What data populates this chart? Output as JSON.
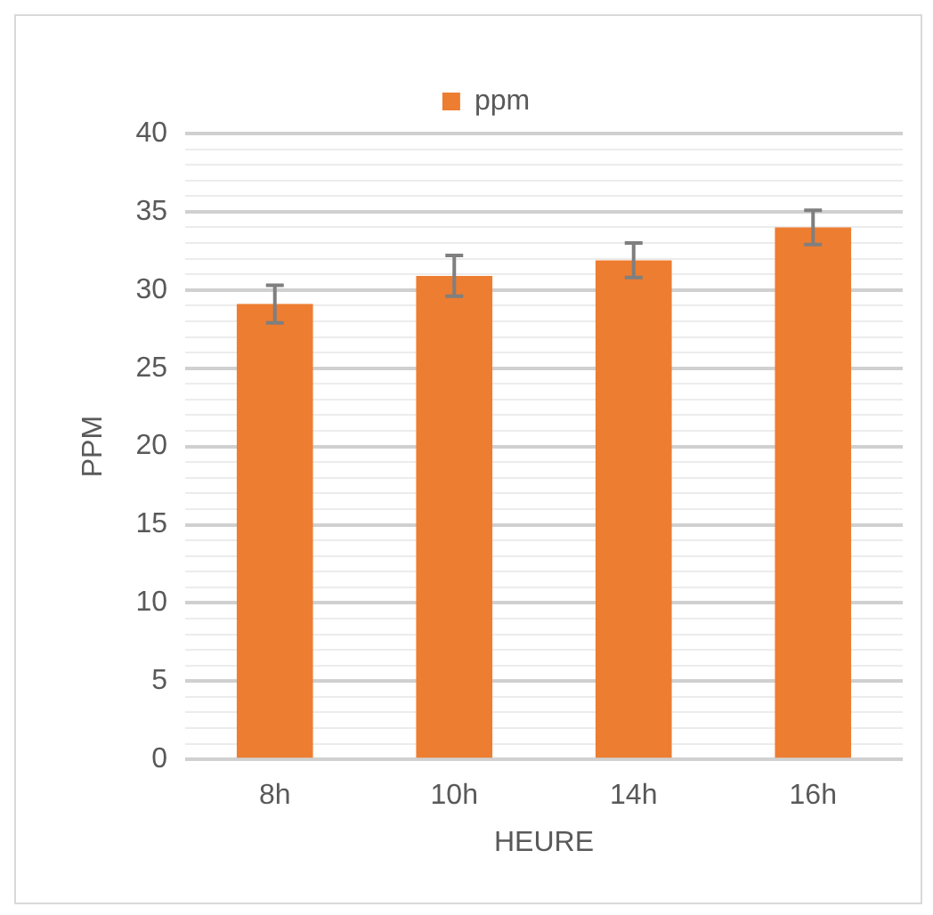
{
  "chart_data": {
    "type": "bar",
    "xlabel": "HEURE",
    "ylabel": "PPM",
    "categories": [
      "8h",
      "10h",
      "14h",
      "16h"
    ],
    "series": [
      {
        "name": "ppm",
        "color": "#ed7d31",
        "values": [
          29.1,
          30.9,
          31.9,
          34.0
        ],
        "errors": [
          1.2,
          1.3,
          1.1,
          1.1
        ]
      }
    ],
    "ylim": [
      0,
      40
    ],
    "yticks": [
      0,
      {
        "value": 1,
        "label": null
      },
      {
        "value": 2,
        "label": null
      },
      {
        "value": 3,
        "label": null
      },
      {
        "value": 4,
        "label": null
      },
      5,
      {
        "value": 6,
        "label": null
      },
      {
        "value": 7,
        "label": null
      },
      {
        "value": 8,
        "label": null
      },
      {
        "value": 9,
        "label": null
      },
      10,
      {
        "value": 11,
        "label": null
      },
      {
        "value": 12,
        "label": null
      },
      {
        "value": 13,
        "label": null
      },
      {
        "value": 14,
        "label": null
      },
      15,
      {
        "value": 16,
        "label": null
      },
      {
        "value": 17,
        "label": null
      },
      {
        "value": 18,
        "label": null
      },
      {
        "value": 19,
        "label": null
      },
      20,
      {
        "value": 21,
        "label": null
      },
      {
        "value": 22,
        "label": null
      },
      {
        "value": 23,
        "label": null
      },
      {
        "value": 24,
        "label": null
      },
      25,
      {
        "value": 26,
        "label": null
      },
      {
        "value": 27,
        "label": null
      },
      {
        "value": 28,
        "label": null
      },
      {
        "value": 29,
        "label": null
      },
      30,
      {
        "value": 31,
        "label": null
      },
      {
        "value": 32,
        "label": null
      },
      {
        "value": 33,
        "label": null
      },
      {
        "value": 34,
        "label": null
      },
      35,
      {
        "value": 36,
        "label": null
      },
      {
        "value": 37,
        "label": null
      },
      {
        "value": 38,
        "label": null
      },
      {
        "value": 39,
        "label": null
      },
      40
    ],
    "grid": "y",
    "legend": "top"
  }
}
